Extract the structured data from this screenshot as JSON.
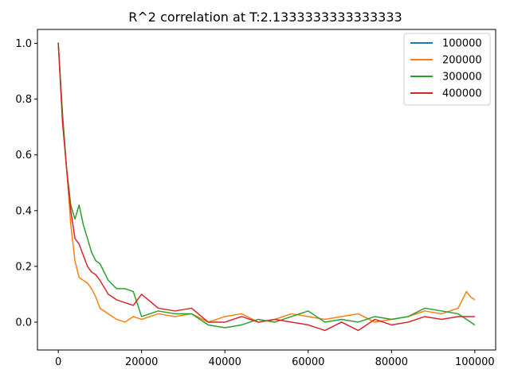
{
  "chart_data": {
    "type": "line",
    "title": "R^2 correlation at T:2.1333333333333333",
    "xlabel": "",
    "ylabel": "",
    "xlim": [
      -5000,
      105000
    ],
    "ylim": [
      -0.1,
      1.05
    ],
    "xticks": [
      0,
      20000,
      40000,
      60000,
      80000,
      100000
    ],
    "xtick_labels": [
      "0",
      "20000",
      "40000",
      "60000",
      "80000",
      "100000"
    ],
    "yticks": [
      0.0,
      0.2,
      0.4,
      0.6,
      0.8,
      1.0
    ],
    "ytick_labels": [
      "0.0",
      "0.2",
      "0.4",
      "0.6",
      "0.8",
      "1.0"
    ],
    "grid": false,
    "legend_position": "top-right",
    "series": [
      {
        "name": "100000",
        "color": "#1f77b4",
        "x": [
          0
        ],
        "y": [
          1.0
        ]
      },
      {
        "name": "200000",
        "color": "#ff7f0e",
        "x": [
          0,
          1000,
          2000,
          3000,
          4000,
          5000,
          6000,
          7000,
          8000,
          9000,
          10000,
          12000,
          14000,
          16000,
          18000,
          20000,
          24000,
          28000,
          32000,
          36000,
          40000,
          44000,
          48000,
          52000,
          56000,
          60000,
          64000,
          68000,
          72000,
          76000,
          80000,
          84000,
          88000,
          92000,
          96000,
          98000,
          99000,
          100000
        ],
        "y": [
          1.0,
          0.75,
          0.55,
          0.35,
          0.22,
          0.16,
          0.15,
          0.14,
          0.12,
          0.09,
          0.05,
          0.03,
          0.01,
          0.0,
          0.02,
          0.01,
          0.03,
          0.02,
          0.03,
          0.0,
          0.02,
          0.03,
          0.0,
          0.01,
          0.03,
          0.02,
          0.01,
          0.02,
          0.03,
          0.0,
          0.01,
          0.02,
          0.04,
          0.03,
          0.05,
          0.11,
          0.09,
          0.08
        ]
      },
      {
        "name": "300000",
        "color": "#2ca02c",
        "x": [
          0,
          1000,
          2000,
          3000,
          4000,
          5000,
          6000,
          7000,
          8000,
          9000,
          10000,
          12000,
          14000,
          16000,
          18000,
          20000,
          24000,
          28000,
          32000,
          36000,
          40000,
          44000,
          48000,
          52000,
          56000,
          60000,
          64000,
          68000,
          72000,
          76000,
          80000,
          84000,
          88000,
          92000,
          96000,
          100000
        ],
        "y": [
          1.0,
          0.75,
          0.55,
          0.42,
          0.37,
          0.42,
          0.35,
          0.3,
          0.25,
          0.22,
          0.21,
          0.15,
          0.12,
          0.12,
          0.11,
          0.02,
          0.04,
          0.03,
          0.03,
          -0.01,
          -0.02,
          -0.01,
          0.01,
          0.0,
          0.02,
          0.04,
          0.0,
          0.01,
          0.0,
          0.02,
          0.01,
          0.02,
          0.05,
          0.04,
          0.03,
          -0.01
        ]
      },
      {
        "name": "400000",
        "color": "#d62728",
        "x": [
          0,
          1000,
          2000,
          3000,
          4000,
          5000,
          6000,
          7000,
          8000,
          9000,
          10000,
          12000,
          14000,
          16000,
          18000,
          20000,
          24000,
          28000,
          32000,
          36000,
          40000,
          44000,
          48000,
          52000,
          56000,
          60000,
          64000,
          68000,
          72000,
          76000,
          80000,
          84000,
          88000,
          92000,
          96000,
          100000
        ],
        "y": [
          1.0,
          0.72,
          0.55,
          0.4,
          0.3,
          0.28,
          0.24,
          0.2,
          0.18,
          0.17,
          0.15,
          0.1,
          0.08,
          0.07,
          0.06,
          0.1,
          0.05,
          0.04,
          0.05,
          0.0,
          0.0,
          0.02,
          0.0,
          0.01,
          0.0,
          -0.01,
          -0.03,
          0.0,
          -0.03,
          0.01,
          -0.01,
          0.0,
          0.02,
          0.01,
          0.02,
          0.02
        ]
      }
    ]
  }
}
